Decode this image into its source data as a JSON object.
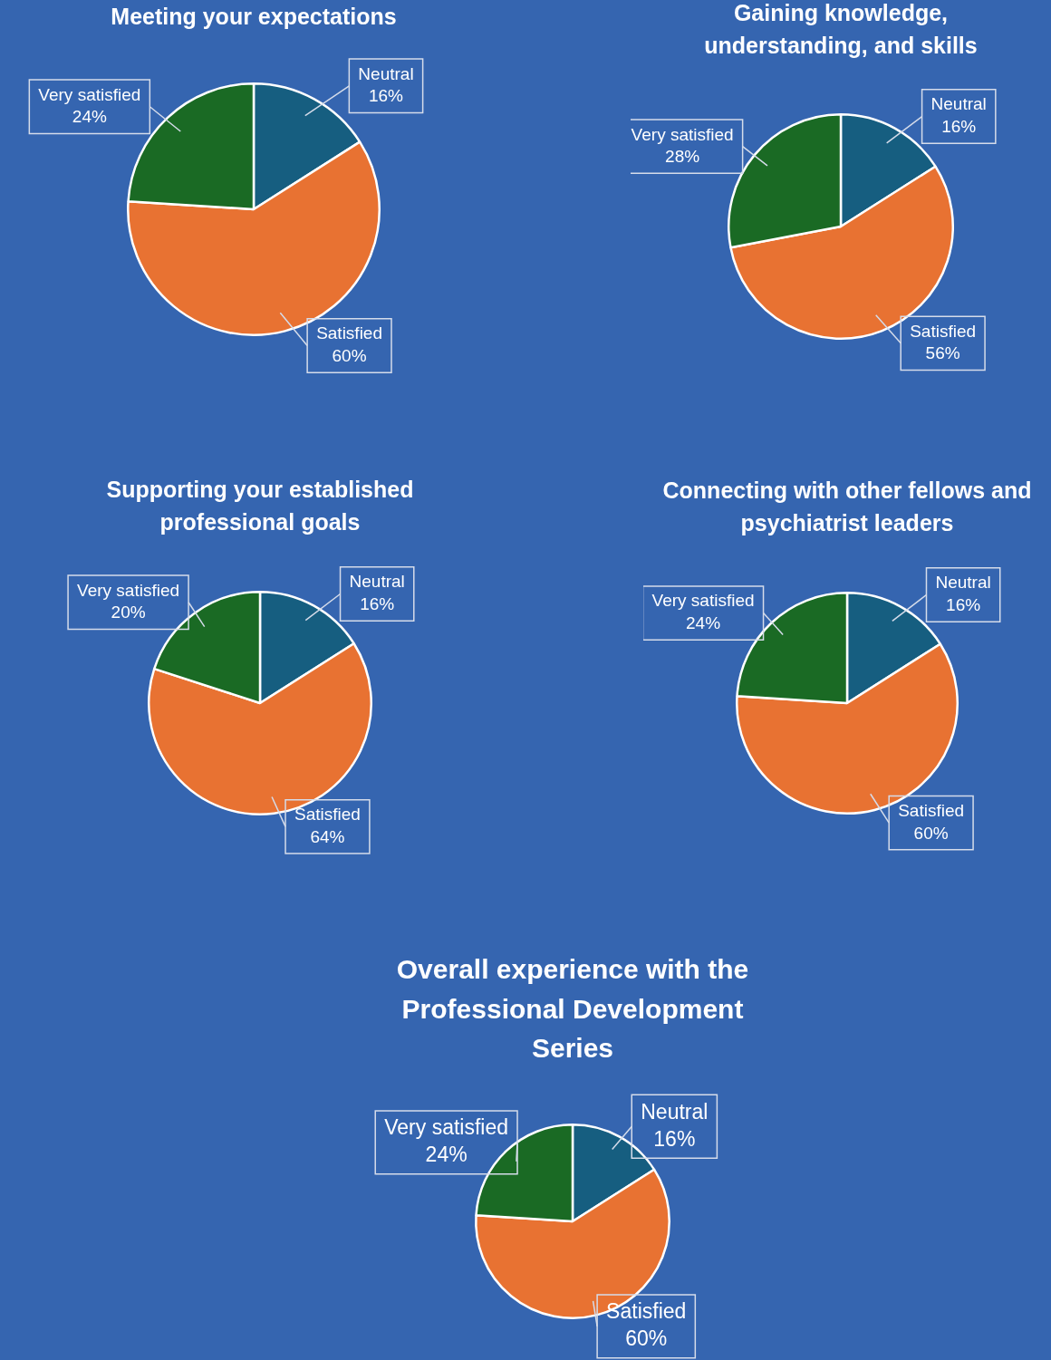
{
  "chart_data": [
    {
      "type": "pie",
      "title": "Meeting your expectations",
      "categories": [
        "Neutral",
        "Satisfied",
        "Very satisfied"
      ],
      "values": [
        16,
        60,
        24
      ],
      "value_labels": [
        "16%",
        "60%",
        "24%"
      ],
      "colors": [
        "#165e80",
        "#e87232",
        "#1a6a24"
      ],
      "legend": false
    },
    {
      "type": "pie",
      "title": "Gaining knowledge, understanding, and skills",
      "categories": [
        "Neutral",
        "Satisfied",
        "Very satisfied"
      ],
      "values": [
        16,
        56,
        28
      ],
      "value_labels": [
        "16%",
        "56%",
        "28%"
      ],
      "colors": [
        "#165e80",
        "#e87232",
        "#1a6a24"
      ],
      "legend": false
    },
    {
      "type": "pie",
      "title": "Supporting your established professional goals",
      "categories": [
        "Neutral",
        "Satisfied",
        "Very satisfied"
      ],
      "values": [
        16,
        64,
        20
      ],
      "value_labels": [
        "16%",
        "64%",
        "20%"
      ],
      "colors": [
        "#165e80",
        "#e87232",
        "#1a6a24"
      ],
      "legend": false
    },
    {
      "type": "pie",
      "title": "Connecting with other fellows and psychiatrist leaders",
      "categories": [
        "Neutral",
        "Satisfied",
        "Very satisfied"
      ],
      "values": [
        16,
        60,
        24
      ],
      "value_labels": [
        "16%",
        "60%",
        "24%"
      ],
      "colors": [
        "#165e80",
        "#e87232",
        "#1a6a24"
      ],
      "legend": false
    },
    {
      "type": "pie",
      "title": "Overall experience with the Professional Development Series",
      "categories": [
        "Neutral",
        "Satisfied",
        "Very satisfied"
      ],
      "values": [
        16,
        60,
        24
      ],
      "value_labels": [
        "16%",
        "60%",
        "24%"
      ],
      "colors": [
        "#165e80",
        "#e87232",
        "#1a6a24"
      ],
      "legend": false
    }
  ]
}
